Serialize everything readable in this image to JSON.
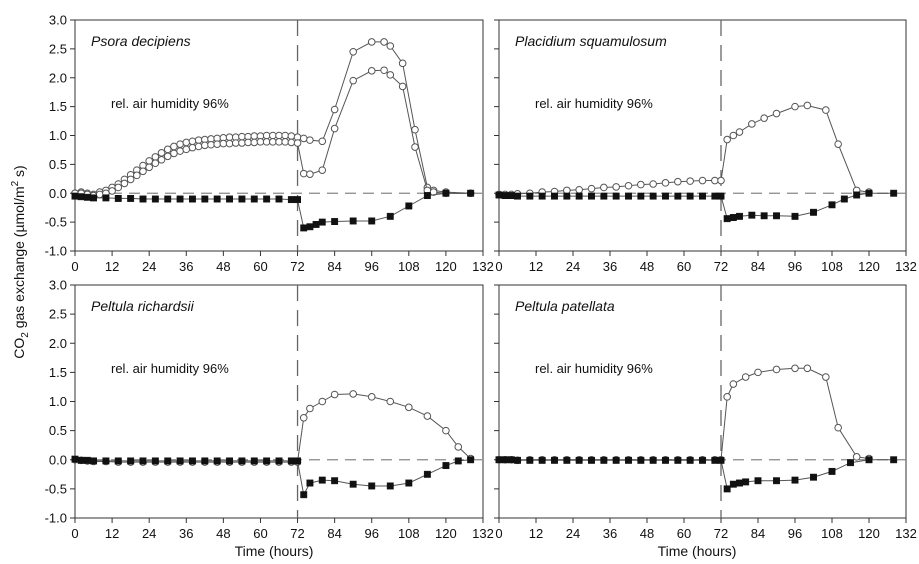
{
  "figure": {
    "ylabel_main": "CO",
    "ylabel_sub": "2",
    "ylabel_rest": " gas exchange (µmol/m",
    "ylabel_sup": "2",
    "ylabel_end": " s)",
    "xlabel": "Time (hours)"
  },
  "chart_data": [
    {
      "type": "line",
      "species": "Psora decipiens",
      "note": "rel. air humidity 96%",
      "xlim": [
        0,
        132
      ],
      "ylim": [
        -1.0,
        3.0
      ],
      "xticks": [
        "0",
        "12",
        "24",
        "36",
        "48",
        "60",
        "72",
        "84",
        "96",
        "108",
        "120",
        "132"
      ],
      "yticks": [
        "-1.0",
        "-0.5",
        "0.0",
        "0.5",
        "1.0",
        "1.5",
        "2.0",
        "2.5",
        "3.0"
      ],
      "show_ytick_labels": true,
      "event_x": 72,
      "series": [
        {
          "style": "open",
          "x": [
            0,
            2,
            4,
            6,
            8,
            10,
            12,
            14,
            16,
            18,
            20,
            22,
            24,
            26,
            28,
            30,
            32,
            34,
            36,
            38,
            40,
            42,
            44,
            46,
            48,
            50,
            52,
            54,
            56,
            58,
            60,
            62,
            64,
            66,
            68,
            70,
            72,
            74,
            76,
            80,
            84,
            90,
            96,
            100,
            102,
            106,
            110,
            114,
            116,
            120,
            128
          ],
          "y": [
            0.0,
            0.02,
            0.0,
            -0.02,
            0.02,
            0.05,
            0.1,
            0.16,
            0.24,
            0.32,
            0.4,
            0.48,
            0.56,
            0.63,
            0.7,
            0.76,
            0.81,
            0.85,
            0.88,
            0.9,
            0.92,
            0.93,
            0.94,
            0.95,
            0.96,
            0.97,
            0.97,
            0.98,
            0.98,
            0.99,
            0.99,
            1.0,
            1.0,
            1.0,
            1.0,
            0.99,
            0.97,
            0.95,
            0.92,
            0.9,
            1.45,
            2.45,
            2.62,
            2.62,
            2.55,
            2.25,
            1.1,
            0.1,
            0.05,
            0.02,
            0.0
          ]
        },
        {
          "style": "open",
          "x": [
            0,
            2,
            4,
            6,
            8,
            10,
            12,
            14,
            16,
            18,
            20,
            22,
            24,
            26,
            28,
            30,
            32,
            34,
            36,
            38,
            40,
            42,
            44,
            46,
            48,
            50,
            52,
            54,
            56,
            58,
            60,
            62,
            64,
            66,
            68,
            70,
            72,
            74,
            76,
            80,
            84,
            90,
            96,
            100,
            102,
            106,
            110,
            114,
            116,
            120,
            128
          ],
          "y": [
            0.0,
            0.0,
            -0.02,
            -0.04,
            -0.02,
            0.0,
            0.04,
            0.1,
            0.17,
            0.24,
            0.31,
            0.38,
            0.45,
            0.52,
            0.58,
            0.64,
            0.69,
            0.73,
            0.76,
            0.79,
            0.81,
            0.83,
            0.84,
            0.85,
            0.86,
            0.86,
            0.87,
            0.87,
            0.88,
            0.88,
            0.89,
            0.89,
            0.89,
            0.89,
            0.89,
            0.88,
            0.87,
            0.34,
            0.33,
            0.4,
            1.12,
            1.95,
            2.12,
            2.13,
            2.05,
            1.85,
            0.8,
            0.05,
            0.02,
            0.0,
            0.0
          ]
        },
        {
          "style": "filled",
          "x": [
            0,
            2,
            4,
            6,
            10,
            14,
            18,
            22,
            26,
            30,
            34,
            38,
            42,
            46,
            50,
            54,
            58,
            62,
            66,
            70,
            72,
            74,
            76,
            78,
            80,
            84,
            90,
            96,
            102,
            108,
            114,
            120,
            128
          ],
          "y": [
            -0.05,
            -0.06,
            -0.07,
            -0.08,
            -0.08,
            -0.09,
            -0.09,
            -0.1,
            -0.1,
            -0.1,
            -0.1,
            -0.1,
            -0.1,
            -0.1,
            -0.1,
            -0.1,
            -0.1,
            -0.1,
            -0.1,
            -0.11,
            -0.11,
            -0.6,
            -0.58,
            -0.54,
            -0.5,
            -0.49,
            -0.48,
            -0.48,
            -0.4,
            -0.22,
            -0.04,
            0.0,
            0.0
          ]
        }
      ]
    },
    {
      "type": "line",
      "species": "Placidium squamulosum",
      "note": "rel. air humidity 96%",
      "xlim": [
        0,
        132
      ],
      "ylim": [
        -1.0,
        3.0
      ],
      "xticks": [
        "0",
        "12",
        "24",
        "36",
        "48",
        "60",
        "72",
        "84",
        "96",
        "108",
        "120",
        "132"
      ],
      "yticks": [
        "-1.0",
        "-0.5",
        "0.0",
        "0.5",
        "1.0",
        "1.5",
        "2.0",
        "2.5",
        "3.0"
      ],
      "show_ytick_labels": false,
      "event_x": 72,
      "series": [
        {
          "style": "open",
          "x": [
            0,
            2,
            4,
            6,
            10,
            14,
            18,
            22,
            26,
            30,
            34,
            38,
            42,
            46,
            50,
            54,
            58,
            62,
            66,
            70,
            72,
            74,
            76,
            78,
            82,
            86,
            90,
            96,
            100,
            106,
            110,
            116,
            120
          ],
          "y": [
            -0.02,
            -0.02,
            -0.02,
            -0.01,
            0.0,
            0.02,
            0.03,
            0.05,
            0.06,
            0.08,
            0.1,
            0.11,
            0.13,
            0.15,
            0.16,
            0.18,
            0.2,
            0.21,
            0.22,
            0.22,
            0.22,
            0.93,
            1.0,
            1.06,
            1.2,
            1.3,
            1.38,
            1.5,
            1.52,
            1.44,
            0.85,
            0.05,
            0.02
          ]
        },
        {
          "style": "filled",
          "x": [
            0,
            2,
            4,
            6,
            10,
            14,
            18,
            22,
            26,
            30,
            34,
            38,
            42,
            46,
            50,
            54,
            58,
            62,
            66,
            70,
            72,
            74,
            76,
            78,
            82,
            86,
            90,
            96,
            102,
            108,
            112,
            116,
            120,
            128
          ],
          "y": [
            -0.03,
            -0.04,
            -0.04,
            -0.05,
            -0.05,
            -0.05,
            -0.05,
            -0.05,
            -0.05,
            -0.05,
            -0.05,
            -0.05,
            -0.05,
            -0.05,
            -0.05,
            -0.05,
            -0.05,
            -0.05,
            -0.05,
            -0.05,
            -0.05,
            -0.44,
            -0.42,
            -0.4,
            -0.38,
            -0.39,
            -0.39,
            -0.4,
            -0.33,
            -0.2,
            -0.1,
            -0.03,
            0.0,
            0.0
          ]
        }
      ]
    },
    {
      "type": "line",
      "species": "Peltula richardsii",
      "note": "rel. air humidity 96%",
      "xlim": [
        0,
        132
      ],
      "ylim": [
        -1.0,
        3.0
      ],
      "xticks": [
        "0",
        "12",
        "24",
        "36",
        "48",
        "60",
        "72",
        "84",
        "96",
        "108",
        "120",
        "132"
      ],
      "yticks": [
        "-1.0",
        "-0.5",
        "0.0",
        "0.5",
        "1.0",
        "1.5",
        "2.0",
        "2.5",
        "3.0"
      ],
      "show_ytick_labels": true,
      "event_x": 72,
      "series": [
        {
          "style": "open",
          "x": [
            0,
            2,
            4,
            6,
            10,
            14,
            18,
            22,
            26,
            30,
            34,
            38,
            42,
            46,
            50,
            54,
            58,
            62,
            66,
            70,
            72,
            74,
            76,
            80,
            84,
            90,
            96,
            102,
            108,
            114,
            120,
            124,
            128
          ],
          "y": [
            0.0,
            -0.01,
            -0.02,
            -0.03,
            -0.03,
            -0.04,
            -0.04,
            -0.04,
            -0.04,
            -0.04,
            -0.04,
            -0.04,
            -0.04,
            -0.04,
            -0.04,
            -0.04,
            -0.04,
            -0.04,
            -0.04,
            -0.04,
            -0.04,
            0.72,
            0.88,
            1.0,
            1.12,
            1.13,
            1.08,
            1.0,
            0.9,
            0.75,
            0.5,
            0.22,
            0.02
          ]
        },
        {
          "style": "filled",
          "x": [
            0,
            2,
            4,
            6,
            10,
            14,
            18,
            22,
            26,
            30,
            34,
            38,
            42,
            46,
            50,
            54,
            58,
            62,
            66,
            70,
            72,
            74,
            76,
            80,
            84,
            90,
            96,
            102,
            108,
            114,
            120,
            124,
            128
          ],
          "y": [
            0.01,
            -0.01,
            -0.01,
            -0.02,
            -0.02,
            -0.02,
            -0.02,
            -0.02,
            -0.02,
            -0.02,
            -0.02,
            -0.02,
            -0.02,
            -0.02,
            -0.02,
            -0.02,
            -0.02,
            -0.02,
            -0.02,
            -0.02,
            -0.02,
            -0.6,
            -0.4,
            -0.35,
            -0.36,
            -0.42,
            -0.45,
            -0.45,
            -0.4,
            -0.25,
            -0.1,
            -0.02,
            0.0
          ]
        }
      ]
    },
    {
      "type": "line",
      "species": "Peltula patellata",
      "note": "rel. air humidity 96%",
      "xlim": [
        0,
        132
      ],
      "ylim": [
        -1.0,
        3.0
      ],
      "xticks": [
        "0",
        "12",
        "24",
        "36",
        "48",
        "60",
        "72",
        "84",
        "96",
        "108",
        "120",
        "132"
      ],
      "yticks": [
        "-1.0",
        "-0.5",
        "0.0",
        "0.5",
        "1.0",
        "1.5",
        "2.0",
        "2.5",
        "3.0"
      ],
      "show_ytick_labels": false,
      "event_x": 72,
      "series": [
        {
          "style": "open",
          "x": [
            0,
            2,
            4,
            6,
            10,
            14,
            18,
            22,
            26,
            30,
            34,
            38,
            42,
            46,
            50,
            54,
            58,
            62,
            66,
            70,
            72,
            74,
            76,
            80,
            84,
            90,
            96,
            100,
            106,
            110,
            116,
            120
          ],
          "y": [
            0.0,
            0.0,
            0.0,
            -0.01,
            0.0,
            0.0,
            0.0,
            0.0,
            0.0,
            0.0,
            0.0,
            0.0,
            0.0,
            0.0,
            0.0,
            0.0,
            0.0,
            0.0,
            0.0,
            0.0,
            0.0,
            1.08,
            1.3,
            1.42,
            1.5,
            1.55,
            1.57,
            1.57,
            1.42,
            0.55,
            0.05,
            0.02
          ]
        },
        {
          "style": "filled",
          "x": [
            0,
            2,
            4,
            6,
            10,
            14,
            18,
            22,
            26,
            30,
            34,
            38,
            42,
            46,
            50,
            54,
            58,
            62,
            66,
            70,
            72,
            74,
            76,
            78,
            80,
            84,
            90,
            96,
            102,
            108,
            114,
            120,
            128
          ],
          "y": [
            0.0,
            0.0,
            0.0,
            -0.01,
            -0.01,
            -0.01,
            -0.01,
            -0.01,
            -0.01,
            -0.01,
            -0.01,
            -0.01,
            -0.01,
            -0.01,
            -0.01,
            -0.01,
            -0.01,
            -0.01,
            -0.01,
            -0.01,
            -0.01,
            -0.5,
            -0.42,
            -0.4,
            -0.38,
            -0.36,
            -0.36,
            -0.35,
            -0.3,
            -0.2,
            -0.05,
            0.0,
            0.0
          ]
        }
      ]
    }
  ]
}
